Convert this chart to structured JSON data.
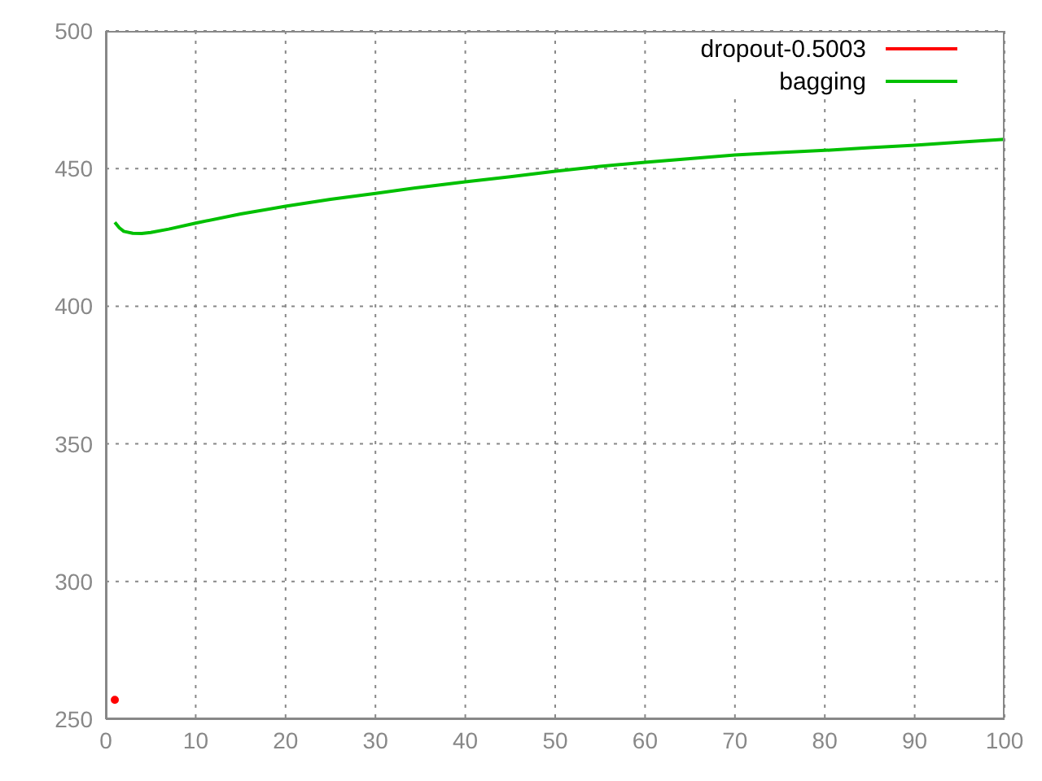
{
  "chart_data": {
    "type": "line",
    "xlim": [
      0,
      100
    ],
    "xticks": [
      0,
      10,
      20,
      30,
      40,
      50,
      60,
      70,
      80,
      90,
      100
    ],
    "ylim": [
      250,
      500
    ],
    "yticks": [
      250,
      300,
      350,
      400,
      450,
      500
    ],
    "grid": true,
    "legend": "top right",
    "line_style": "solid",
    "series": [
      {
        "name": "dropout-0.5003",
        "color": "#ff0000",
        "marker": "circle",
        "x": [
          1
        ],
        "values": [
          257
        ]
      },
      {
        "name": "bagging",
        "color": "#00c000",
        "x": [
          1,
          1.5,
          2,
          3,
          4,
          5,
          7,
          10,
          15,
          20,
          25,
          30,
          35,
          40,
          45,
          50,
          55,
          60,
          65,
          70,
          75,
          80,
          85,
          90,
          95,
          100
        ],
        "values": [
          430.5,
          428.5,
          427.2,
          426.5,
          426.4,
          426.8,
          428,
          430.2,
          433.5,
          436.3,
          438.8,
          441,
          443.2,
          445.2,
          447,
          449,
          450.8,
          452.3,
          453.6,
          454.9,
          455.8,
          456.6,
          457.6,
          458.5,
          459.6,
          460.6
        ]
      }
    ]
  }
}
